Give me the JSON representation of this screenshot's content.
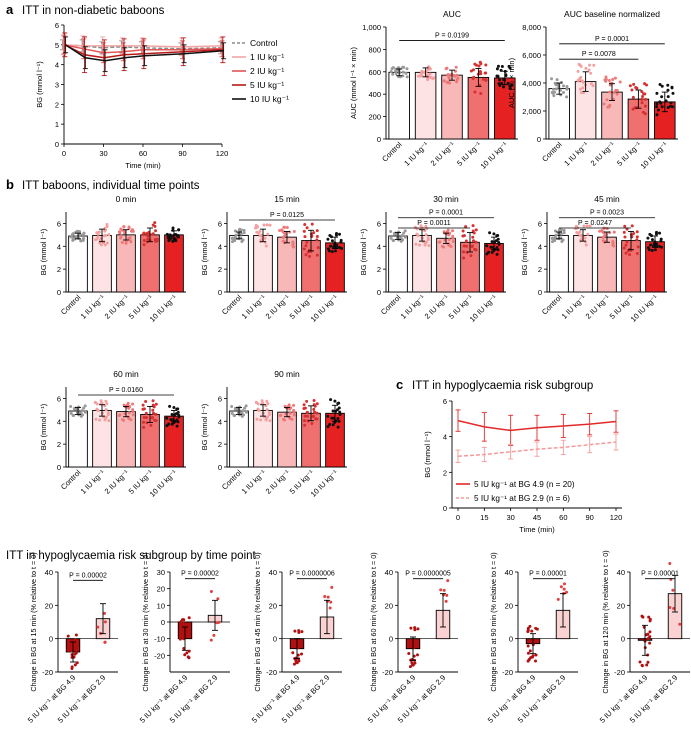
{
  "colors": {
    "control": "#ffffff",
    "dose1": "#fde3e3",
    "dose2": "#f9b8b8",
    "dose5": "#f07070",
    "dose10": "#e52121",
    "line_control": "#8c8c8c",
    "line_dose1": "#f2a4a4",
    "line_dose2": "#e05555",
    "line_dose5": "#b81818",
    "line_dose10": "#111111",
    "sub_dark": "#b01010",
    "sub_light": "#fbd2d2",
    "sub_line_main": "#e32a2a",
    "sub_line_low": "#f59a9a"
  },
  "panel_a": {
    "label": "a",
    "title": "ITT in non-diabetic baboons"
  },
  "panel_b": {
    "label": "b",
    "title": "ITT baboons, individual time points"
  },
  "panel_c": {
    "label": "c",
    "title": "ITT in hypoglycaemia risk subgroup"
  },
  "panel_d": {
    "title": "ITT in hypoglycaemia risk subgroup by time point"
  },
  "chart_data": [
    {
      "id": "itt-line",
      "type": "line",
      "title": "",
      "xlabel": "Time (min)",
      "ylabel": "BG (mmol l⁻¹)",
      "x": [
        0,
        15,
        30,
        45,
        60,
        90,
        120
      ],
      "xticks": [
        "0",
        "30",
        "60",
        "90",
        "120"
      ],
      "xtick_values": [
        0,
        30,
        60,
        90,
        120
      ],
      "ylim": [
        0,
        6
      ],
      "yticks": [
        0,
        1,
        2,
        3,
        4,
        5,
        6
      ],
      "legend": "top-right",
      "series": [
        {
          "name": "Control",
          "dashed": true,
          "values": [
            5.0,
            4.95,
            4.85,
            4.9,
            4.85,
            4.8,
            4.85
          ],
          "err": [
            0.25,
            0.3,
            0.3,
            0.3,
            0.3,
            0.3,
            0.3
          ]
        },
        {
          "name": "1 IU kg⁻¹",
          "dashed": false,
          "values": [
            5.0,
            4.95,
            4.95,
            4.95,
            4.95,
            4.9,
            4.95
          ],
          "err": [
            0.5,
            0.5,
            0.45,
            0.4,
            0.4,
            0.45,
            0.4
          ]
        },
        {
          "name": "2 IU kg⁻¹",
          "dashed": false,
          "values": [
            5.0,
            4.8,
            4.6,
            4.65,
            4.75,
            4.75,
            4.8
          ],
          "err": [
            0.45,
            0.5,
            0.5,
            0.45,
            0.45,
            0.45,
            0.4
          ]
        },
        {
          "name": "5 IU kg⁻¹",
          "dashed": false,
          "values": [
            5.0,
            4.5,
            4.35,
            4.5,
            4.55,
            4.65,
            4.75
          ],
          "err": [
            0.6,
            0.9,
            0.9,
            0.8,
            0.75,
            0.7,
            0.65
          ]
        },
        {
          "name": "10 IU kg⁻¹",
          "dashed": false,
          "values": [
            5.0,
            4.35,
            4.2,
            4.35,
            4.45,
            4.55,
            4.7
          ],
          "err": [
            0.4,
            0.55,
            0.55,
            0.5,
            0.5,
            0.45,
            0.4
          ]
        }
      ]
    },
    {
      "id": "auc",
      "type": "bar",
      "title": "AUC",
      "ylabel": "AUC (mmol l⁻¹ × min)",
      "categories": [
        "Control",
        "1 IU kg⁻¹",
        "2 IU kg⁻¹",
        "5 IU kg⁻¹",
        "10 IU kg⁻¹"
      ],
      "values": [
        595,
        595,
        570,
        550,
        545
      ],
      "err": [
        30,
        40,
        45,
        80,
        60
      ],
      "ylim": [
        0,
        1000
      ],
      "yticks": [
        0,
        200,
        400,
        600,
        800,
        1000
      ],
      "ytick_labels": [
        "0",
        "200",
        "400",
        "600",
        "800",
        "1,000"
      ],
      "annotations": [
        {
          "text": "P = 0.0199",
          "from": 0,
          "to": 4,
          "y": 880
        }
      ]
    },
    {
      "id": "auc-norm",
      "type": "bar",
      "title": "AUC baseline normalized",
      "ylabel": "AUC (% × min)",
      "categories": [
        "Control",
        "1 IU kg⁻¹",
        "2 IU kg⁻¹",
        "5 IU kg⁻¹",
        "10 IU kg⁻¹"
      ],
      "values": [
        3600,
        4100,
        3350,
        2850,
        2650
      ],
      "err": [
        400,
        700,
        600,
        650,
        700
      ],
      "ylim": [
        0,
        8000
      ],
      "yticks": [
        0,
        2000,
        4000,
        6000,
        8000
      ],
      "ytick_labels": [
        "0",
        "2,000",
        "4,000",
        "6,000",
        "8,000"
      ],
      "annotations": [
        {
          "text": "P = 0.0078",
          "from": 0,
          "to": 3,
          "y": 5700
        },
        {
          "text": "P = 0.0001",
          "from": 0,
          "to": 4,
          "y": 6800
        }
      ]
    },
    {
      "id": "b-0min",
      "type": "bar",
      "title": "0 min",
      "ylabel": "BG (mmol l⁻¹)",
      "categories": [
        "Control",
        "1 IU kg⁻¹",
        "2 IU kg⁻¹",
        "5 IU kg⁻¹",
        "10 IU kg⁻¹"
      ],
      "values": [
        4.9,
        4.95,
        5.0,
        5.0,
        5.0
      ],
      "err": [
        0.25,
        0.55,
        0.45,
        0.6,
        0.35
      ],
      "ylim": [
        0,
        7
      ],
      "yticks": [
        0,
        2,
        4,
        6
      ],
      "annotations": []
    },
    {
      "id": "b-15min",
      "type": "bar",
      "title": "15 min",
      "ylabel": "BG (mmol l⁻¹)",
      "categories": [
        "Control",
        "1 IU kg⁻¹",
        "2 IU kg⁻¹",
        "5 IU kg⁻¹",
        "10 IU kg⁻¹"
      ],
      "values": [
        4.95,
        4.95,
        4.8,
        4.5,
        4.3
      ],
      "err": [
        0.3,
        0.55,
        0.5,
        0.9,
        0.5
      ],
      "ylim": [
        0,
        7
      ],
      "yticks": [
        0,
        2,
        4,
        6
      ],
      "annotations": [
        {
          "text": "P = 0.0125",
          "from": 0,
          "to": 4,
          "y": 6.3
        }
      ]
    },
    {
      "id": "b-30min",
      "type": "bar",
      "title": "30 min",
      "ylabel": "BG (mmol l⁻¹)",
      "categories": [
        "Control",
        "1 IU kg⁻¹",
        "2 IU kg⁻¹",
        "5 IU kg⁻¹",
        "10 IU kg⁻¹"
      ],
      "values": [
        4.9,
        4.95,
        4.7,
        4.35,
        4.25
      ],
      "err": [
        0.3,
        0.5,
        0.45,
        0.85,
        0.55
      ],
      "ylim": [
        0,
        7
      ],
      "yticks": [
        0,
        2,
        4,
        6
      ],
      "annotations": [
        {
          "text": "P = 0.0011",
          "from": 0,
          "to": 3,
          "y": 5.6
        },
        {
          "text": "P = 0.0001",
          "from": 0,
          "to": 4,
          "y": 6.5
        }
      ]
    },
    {
      "id": "b-45min",
      "type": "bar",
      "title": "45 min",
      "ylabel": "BG (mmol l⁻¹)",
      "categories": [
        "Control",
        "1 IU kg⁻¹",
        "2 IU kg⁻¹",
        "5 IU kg⁻¹",
        "10 IU kg⁻¹"
      ],
      "values": [
        4.95,
        4.95,
        4.8,
        4.5,
        4.4
      ],
      "err": [
        0.3,
        0.5,
        0.45,
        0.8,
        0.5
      ],
      "ylim": [
        0,
        7
      ],
      "yticks": [
        0,
        2,
        4,
        6
      ],
      "annotations": [
        {
          "text": "P = 0.0247",
          "from": 0,
          "to": 3,
          "y": 5.6
        },
        {
          "text": "P = 0.0023",
          "from": 0,
          "to": 4,
          "y": 6.5
        }
      ]
    },
    {
      "id": "b-60min",
      "type": "bar",
      "title": "60 min",
      "ylabel": "BG (mmol l⁻¹)",
      "categories": [
        "Control",
        "1 IU kg⁻¹",
        "2 IU kg⁻¹",
        "5 IU kg⁻¹",
        "10 IU kg⁻¹"
      ],
      "values": [
        4.9,
        4.95,
        4.85,
        4.6,
        4.45
      ],
      "err": [
        0.3,
        0.5,
        0.45,
        0.7,
        0.5
      ],
      "ylim": [
        0,
        7
      ],
      "yticks": [
        0,
        2,
        4,
        6
      ],
      "annotations": [
        {
          "text": "P = 0.0160",
          "from": 0,
          "to": 4,
          "y": 6.3
        }
      ]
    },
    {
      "id": "b-90min",
      "type": "bar",
      "title": "90 min",
      "ylabel": "BG (mmol l⁻¹)",
      "categories": [
        "Control",
        "1 IU kg⁻¹",
        "2 IU kg⁻¹",
        "5 IU kg⁻¹",
        "10 IU kg⁻¹"
      ],
      "values": [
        4.9,
        4.95,
        4.8,
        4.7,
        4.7
      ],
      "err": [
        0.3,
        0.5,
        0.4,
        0.65,
        0.7
      ],
      "ylim": [
        0,
        7
      ],
      "yticks": [
        0,
        2,
        4,
        6
      ],
      "annotations": []
    },
    {
      "id": "c-line",
      "type": "line",
      "title": "",
      "xlabel": "Time (min)",
      "ylabel": "BG (mmol l⁻¹)",
      "x": [
        0,
        15,
        30,
        45,
        60,
        90,
        120
      ],
      "xticks": [
        "0",
        "15",
        "30",
        "45",
        "60",
        "90",
        "120"
      ],
      "ylim": [
        0,
        6
      ],
      "yticks": [
        0,
        2,
        4,
        6
      ],
      "legend": "bottom-right",
      "series": [
        {
          "name": "5 IU kg⁻¹ at BG 4.9 (n = 20)",
          "dashed": false,
          "values": [
            4.9,
            4.55,
            4.35,
            4.5,
            4.6,
            4.7,
            4.85
          ],
          "err": [
            0.6,
            0.8,
            0.85,
            0.7,
            0.65,
            0.6,
            0.6
          ]
        },
        {
          "name": "5 IU kg⁻¹ at BG 2.9 (n = 6)",
          "dashed": true,
          "values": [
            2.9,
            3.0,
            3.15,
            3.3,
            3.4,
            3.55,
            3.7
          ],
          "err": [
            0.35,
            0.4,
            0.4,
            0.4,
            0.4,
            0.45,
            0.45
          ]
        }
      ]
    },
    {
      "id": "d-15",
      "type": "bar",
      "ylabel": "Change in BG at 15 min (% relative to t = 0)",
      "categories": [
        "5 IU kg⁻¹ at BG 4.9",
        "5 IU kg⁻¹ at BG 2.9"
      ],
      "values": [
        -8,
        12
      ],
      "err": [
        6,
        9
      ],
      "ylim": [
        -20,
        40
      ],
      "yticks": [
        -20,
        0,
        20,
        40
      ],
      "annotations": [
        {
          "text": "P = 0.00002",
          "from": 0,
          "to": 1,
          "y": 35
        }
      ]
    },
    {
      "id": "d-30",
      "type": "bar",
      "ylabel": "Change in BG at 30 min (% relative to t = 0)",
      "categories": [
        "5 IU kg⁻¹ at BG 4.9",
        "5 IU kg⁻¹ at BG 2.9"
      ],
      "values": [
        -10,
        4
      ],
      "err": [
        7,
        9
      ],
      "ylim": [
        -30,
        30
      ],
      "yticks": [
        -20,
        -10,
        0,
        10,
        20,
        30
      ],
      "annotations": [
        {
          "text": "P = 0.00002",
          "from": 0,
          "to": 1,
          "y": 26
        }
      ]
    },
    {
      "id": "d-45",
      "type": "bar",
      "ylabel": "Change in BG at 45 min (% relative to t = 0)",
      "categories": [
        "5 IU kg⁻¹ at BG 4.9",
        "5 IU kg⁻¹ at BG 2.9"
      ],
      "values": [
        -6,
        13
      ],
      "err": [
        6,
        10
      ],
      "ylim": [
        -20,
        40
      ],
      "yticks": [
        -20,
        0,
        20,
        40
      ],
      "annotations": [
        {
          "text": "P = 0.0000006",
          "from": 0,
          "to": 1,
          "y": 36
        }
      ]
    },
    {
      "id": "d-60",
      "type": "bar",
      "ylabel": "Change in BG at 60 min (% relative to t = 0)",
      "categories": [
        "5 IU kg⁻¹ at BG 4.9",
        "5 IU kg⁻¹ at BG 2.9"
      ],
      "values": [
        -6,
        17
      ],
      "err": [
        7,
        10
      ],
      "ylim": [
        -20,
        40
      ],
      "yticks": [
        -20,
        0,
        20,
        40
      ],
      "annotations": [
        {
          "text": "P = 0.0000005",
          "from": 0,
          "to": 1,
          "y": 36
        }
      ]
    },
    {
      "id": "d-90",
      "type": "bar",
      "ylabel": "Change in BG at 90 min (% relative to t = 0)",
      "categories": [
        "5 IU kg⁻¹ at BG 4.9",
        "5 IU kg⁻¹ at BG 2.9"
      ],
      "values": [
        -3,
        17
      ],
      "err": [
        6,
        10
      ],
      "ylim": [
        -20,
        40
      ],
      "yticks": [
        -20,
        0,
        20,
        40
      ],
      "annotations": [
        {
          "text": "P = 0.00001",
          "from": 0,
          "to": 1,
          "y": 36
        }
      ]
    },
    {
      "id": "d-120",
      "type": "bar",
      "ylabel": "Change in BG at 120 min (% relative to t = 0)",
      "categories": [
        "5 IU kg⁻¹ at BG 4.9",
        "5 IU kg⁻¹ at BG 2.9"
      ],
      "values": [
        -1,
        27
      ],
      "err": [
        9,
        11
      ],
      "ylim": [
        -20,
        40
      ],
      "yticks": [
        -20,
        0,
        20,
        40
      ],
      "annotations": [
        {
          "text": "P = 0.00001",
          "from": 0,
          "to": 1,
          "y": 36
        }
      ]
    }
  ]
}
